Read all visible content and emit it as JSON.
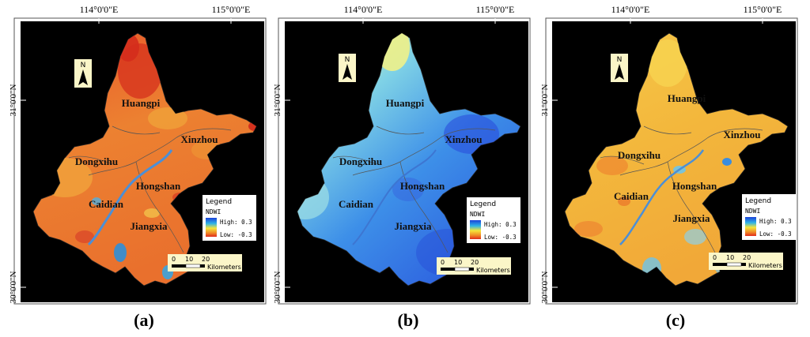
{
  "longitude_labels": [
    "114°0'0\"E",
    "115°0'0\"E"
  ],
  "latitude_labels": [
    "31°0'0\"N",
    "30°0'0\"N"
  ],
  "north_arrow_label": "N",
  "districts": {
    "huangpi": "Huangpi",
    "xinzhou": "Xinzhou",
    "dongxihu": "Dongxihu",
    "hongshan": "Hongshan",
    "caidian": "Caidian",
    "jiangxia": "Jiangxia"
  },
  "legend": {
    "title": "Legend",
    "variable": "NDWI",
    "high": "High: 0.3",
    "low": "Low: -0.3"
  },
  "scalebar": {
    "ticks": [
      "0",
      "10",
      "20"
    ],
    "unit": "Kilometers"
  },
  "panels": [
    {
      "caption": "(a)",
      "palette": "orange-red",
      "colors": [
        "#e3642a",
        "#ee8a30",
        "#f3b23c",
        "#2f8fd8"
      ]
    },
    {
      "caption": "(b)",
      "palette": "blue",
      "colors": [
        "#2f6fe6",
        "#4ea4ec",
        "#9fe0e4",
        "#f2f28a"
      ]
    },
    {
      "caption": "(c)",
      "palette": "yellow",
      "colors": [
        "#f3b73c",
        "#f7cd4a",
        "#f19b34",
        "#6ec4ea"
      ]
    }
  ]
}
